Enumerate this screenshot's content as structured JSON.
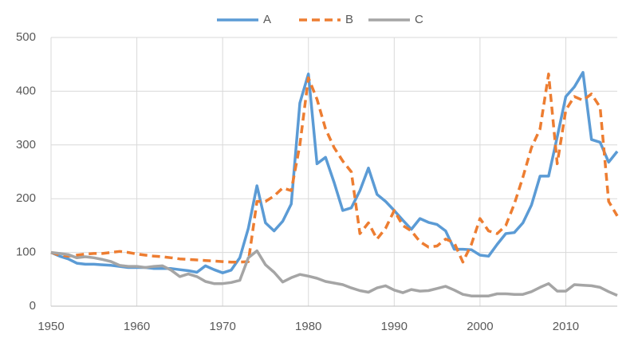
{
  "chart_data": {
    "type": "line",
    "x": [
      1950,
      1951,
      1952,
      1953,
      1954,
      1955,
      1956,
      1957,
      1958,
      1959,
      1960,
      1961,
      1962,
      1963,
      1964,
      1965,
      1966,
      1967,
      1968,
      1969,
      1970,
      1971,
      1972,
      1973,
      1974,
      1975,
      1976,
      1977,
      1978,
      1979,
      1980,
      1981,
      1982,
      1983,
      1984,
      1985,
      1986,
      1987,
      1988,
      1989,
      1990,
      1991,
      1992,
      1993,
      1994,
      1995,
      1996,
      1997,
      1998,
      1999,
      2000,
      2001,
      2002,
      2003,
      2004,
      2005,
      2006,
      2007,
      2008,
      2009,
      2010,
      2011,
      2012,
      2013,
      2014,
      2015,
      2016
    ],
    "series": [
      {
        "name": "A",
        "color": "#5b9bd5",
        "dashed": false,
        "values": [
          100,
          93,
          88,
          80,
          78,
          78,
          77,
          76,
          74,
          72,
          72,
          72,
          70,
          70,
          70,
          68,
          66,
          63,
          75,
          68,
          62,
          67,
          90,
          145,
          224,
          155,
          140,
          158,
          190,
          378,
          432,
          265,
          277,
          230,
          178,
          183,
          215,
          257,
          208,
          195,
          178,
          160,
          143,
          163,
          156,
          152,
          140,
          106,
          106,
          105,
          95,
          93,
          115,
          135,
          137,
          155,
          188,
          242,
          242,
          315,
          390,
          408,
          435,
          310,
          305,
          268,
          288
        ]
      },
      {
        "name": "B",
        "color": "#ed7d31",
        "dashed": true,
        "values": [
          100,
          95,
          93,
          95,
          97,
          98,
          98,
          100,
          102,
          100,
          97,
          95,
          93,
          92,
          90,
          88,
          87,
          86,
          85,
          84,
          83,
          82,
          82,
          83,
          195,
          195,
          205,
          220,
          215,
          300,
          425,
          385,
          330,
          295,
          270,
          250,
          135,
          155,
          125,
          145,
          178,
          150,
          140,
          120,
          110,
          112,
          125,
          118,
          82,
          115,
          163,
          140,
          135,
          150,
          190,
          240,
          295,
          330,
          432,
          265,
          365,
          390,
          383,
          395,
          370,
          195,
          168
        ]
      },
      {
        "name": "C",
        "color": "#a5a5a5",
        "dashed": false,
        "values": [
          100,
          98,
          96,
          90,
          92,
          90,
          87,
          83,
          76,
          74,
          74,
          72,
          74,
          75,
          67,
          55,
          60,
          55,
          46,
          42,
          42,
          44,
          48,
          90,
          103,
          77,
          63,
          45,
          53,
          59,
          56,
          52,
          46,
          43,
          40,
          34,
          29,
          26,
          34,
          38,
          30,
          25,
          31,
          28,
          29,
          33,
          37,
          30,
          22,
          19,
          19,
          19,
          23,
          23,
          22,
          22,
          27,
          35,
          42,
          28,
          28,
          40,
          39,
          38,
          35,
          27,
          20
        ]
      }
    ],
    "xlim": [
      1950,
      2016
    ],
    "xticks": [
      1950,
      1960,
      1970,
      1980,
      1990,
      2000,
      2010
    ],
    "ylim": [
      0,
      500
    ],
    "yticks": [
      0,
      100,
      200,
      300,
      400,
      500
    ],
    "grid": true,
    "legend": "top"
  }
}
